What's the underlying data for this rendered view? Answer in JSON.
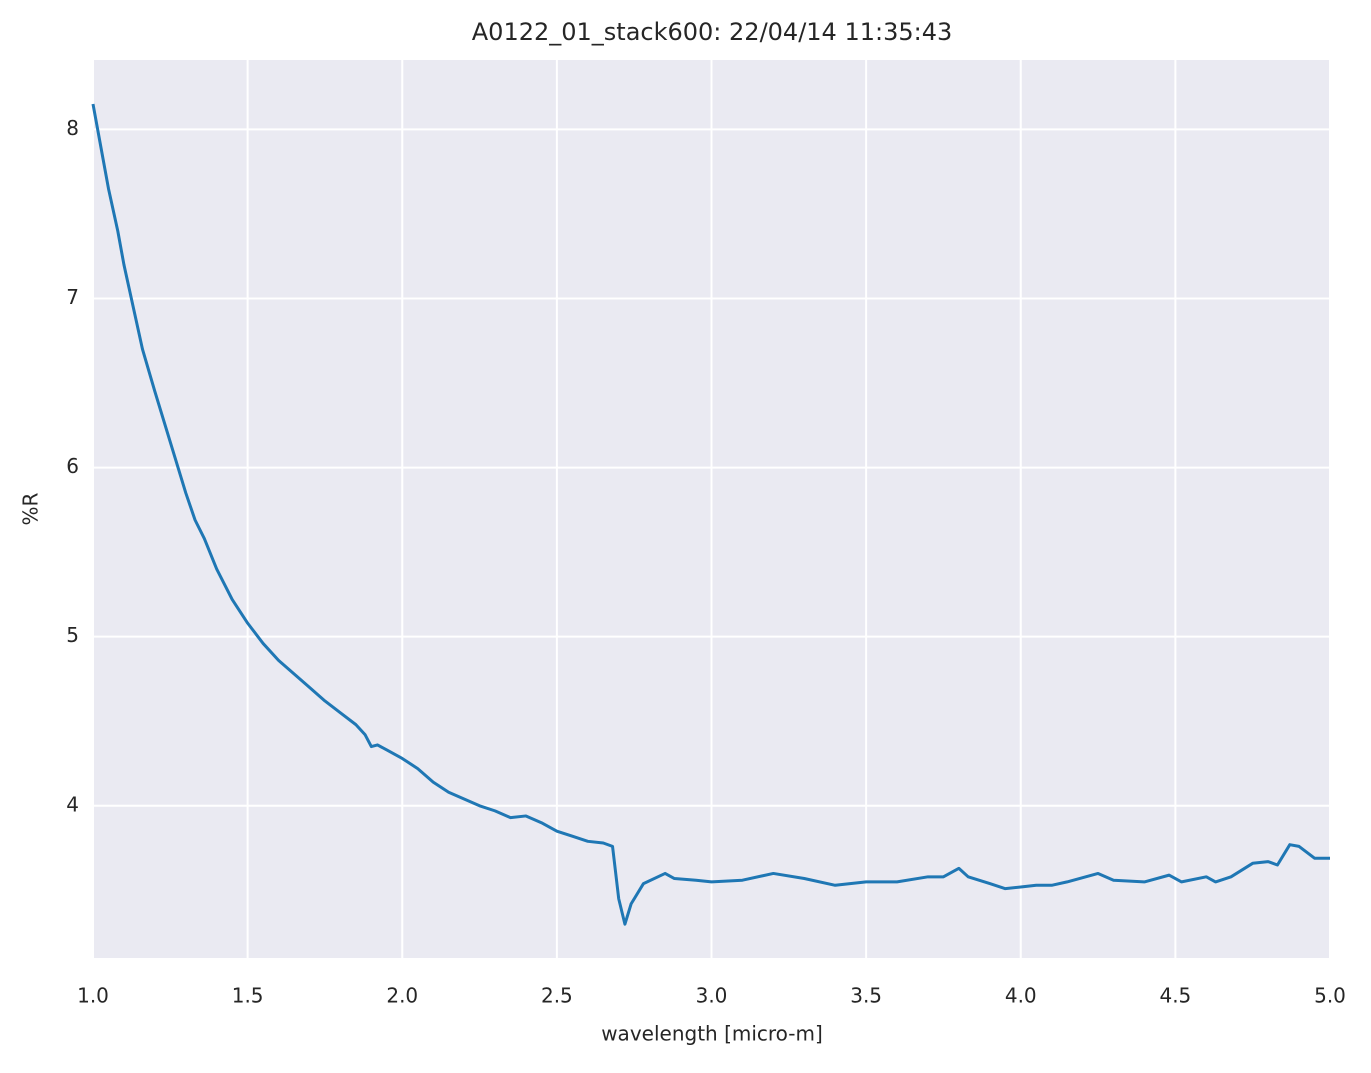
{
  "chart_data": {
    "type": "line",
    "title": "A0122_01_stack600:  22/04/14 11:35:43",
    "x_label": "wavelength [micro-m]",
    "y_label": "%R",
    "x": [
      1.0,
      1.02,
      1.05,
      1.08,
      1.1,
      1.13,
      1.16,
      1.2,
      1.25,
      1.3,
      1.33,
      1.36,
      1.4,
      1.45,
      1.5,
      1.55,
      1.6,
      1.65,
      1.7,
      1.75,
      1.8,
      1.85,
      1.88,
      1.9,
      1.92,
      1.95,
      2.0,
      2.05,
      2.1,
      2.15,
      2.2,
      2.25,
      2.3,
      2.35,
      2.4,
      2.45,
      2.5,
      2.55,
      2.6,
      2.65,
      2.68,
      2.7,
      2.72,
      2.74,
      2.78,
      2.85,
      2.88,
      2.95,
      3.0,
      3.1,
      3.2,
      3.3,
      3.4,
      3.5,
      3.6,
      3.7,
      3.75,
      3.8,
      3.83,
      3.9,
      3.95,
      4.0,
      4.05,
      4.1,
      4.15,
      4.25,
      4.3,
      4.4,
      4.48,
      4.52,
      4.6,
      4.63,
      4.68,
      4.75,
      4.8,
      4.83,
      4.87,
      4.9,
      4.95,
      5.0
    ],
    "series": [
      {
        "name": "%R",
        "color": "#1f77b4",
        "values": [
          8.15,
          7.95,
          7.65,
          7.4,
          7.2,
          6.95,
          6.7,
          6.45,
          6.15,
          5.85,
          5.69,
          5.58,
          5.4,
          5.22,
          5.08,
          4.96,
          4.86,
          4.78,
          4.7,
          4.62,
          4.55,
          4.48,
          4.42,
          4.35,
          4.36,
          4.33,
          4.28,
          4.22,
          4.14,
          4.08,
          4.04,
          4.0,
          3.97,
          3.93,
          3.94,
          3.9,
          3.85,
          3.82,
          3.79,
          3.78,
          3.76,
          3.45,
          3.3,
          3.42,
          3.54,
          3.6,
          3.57,
          3.56,
          3.55,
          3.56,
          3.6,
          3.57,
          3.53,
          3.55,
          3.55,
          3.58,
          3.58,
          3.63,
          3.58,
          3.54,
          3.51,
          3.52,
          3.53,
          3.53,
          3.55,
          3.6,
          3.56,
          3.55,
          3.59,
          3.55,
          3.58,
          3.55,
          3.58,
          3.66,
          3.67,
          3.65,
          3.77,
          3.76,
          3.69,
          3.69
        ]
      }
    ],
    "xlim": [
      1.0,
      5.0
    ],
    "ylim": [
      3.1,
      8.41
    ],
    "xticks": [
      {
        "value": 1,
        "label": "1.0"
      },
      1.5,
      {
        "value": 2,
        "label": "2.0"
      },
      2.5,
      {
        "value": 3,
        "label": "3.0"
      },
      3.5,
      {
        "value": 4,
        "label": "4.0"
      },
      4.5,
      {
        "value": 5,
        "label": "5.0"
      }
    ],
    "yticks": [
      4,
      5,
      6,
      7,
      8
    ],
    "grid": true,
    "background": "#eaeaf2"
  }
}
